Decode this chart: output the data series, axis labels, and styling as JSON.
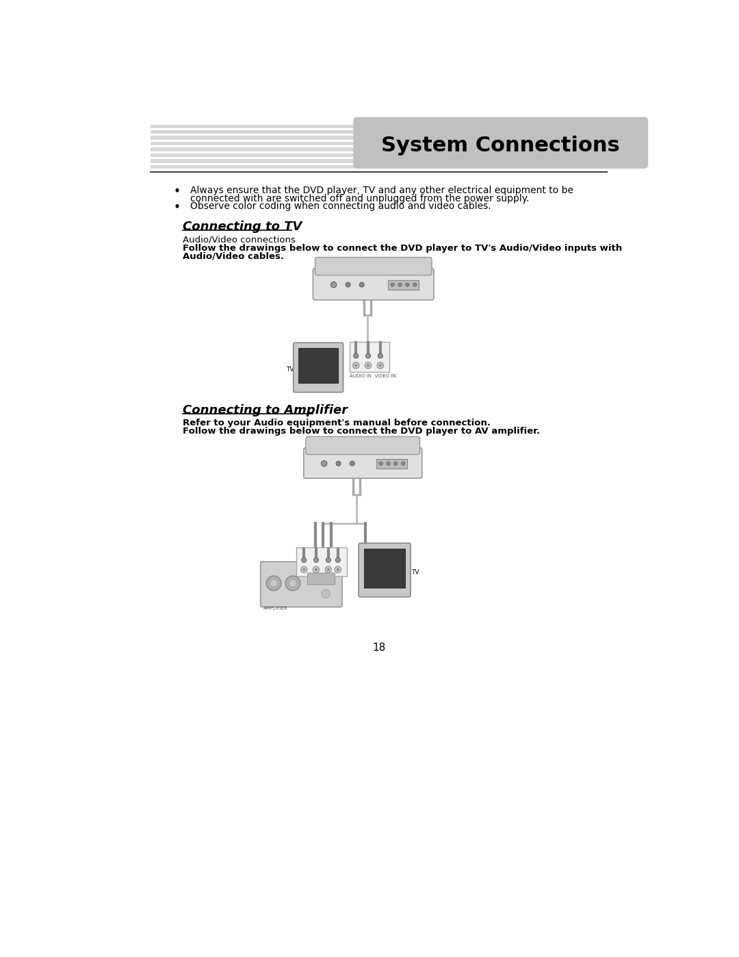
{
  "title": "System Connections",
  "title_bg": "#c0c0c0",
  "title_fontsize": 22,
  "bullet1_line1": "Always ensure that the DVD player, TV and any other electrical equipment to be",
  "bullet1_line2": "connected with are switched off and unplugged from the power supply.",
  "bullet2": "Observe color coding when connecting audio and video cables.",
  "section1_title": "Connecting to TV",
  "section1_sub1": "Audio/Video connections",
  "section1_sub2": "Follow the drawings below to connect the DVD player to TV's Audio/Video inputs with",
  "section1_sub3": "Audio/Video cables.",
  "section2_title": "Connecting to Amplifier",
  "section2_sub1": "Refer to your Audio equipment's manual before connection.",
  "section2_sub2": "Follow the drawings below to connect the DVD player to AV amplifier.",
  "page_number": "18",
  "bg_color": "#ffffff",
  "text_color": "#000000",
  "stripe_color": "#d8d8d8"
}
